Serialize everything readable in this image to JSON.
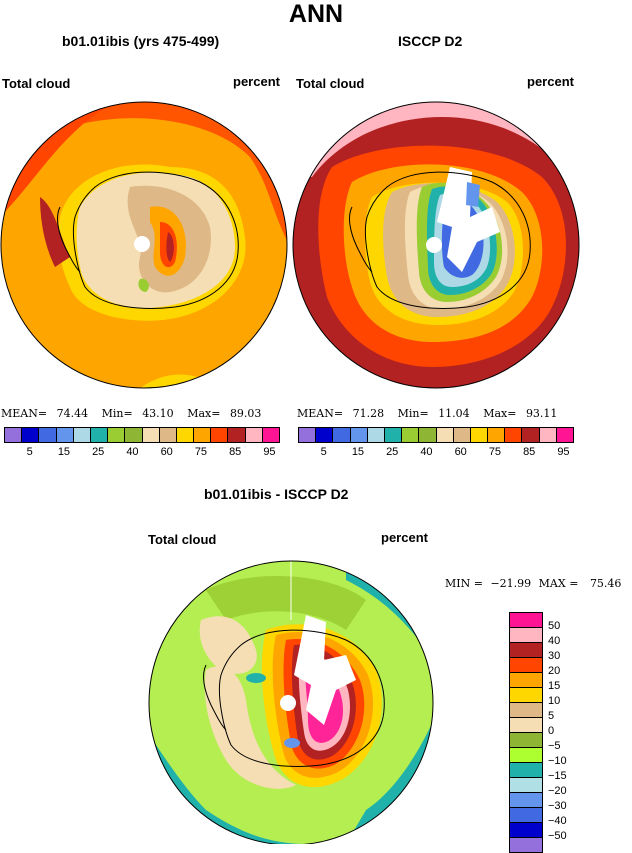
{
  "title": "ANN",
  "panels": {
    "model": {
      "title": "b01.01ibis (yrs 475-499)",
      "left": "Total cloud",
      "right": "percent"
    },
    "obs": {
      "title": "ISCCP D2",
      "left": "Total cloud",
      "right": "percent"
    },
    "diff": {
      "title": "b01.01ibis - ISCCP D2",
      "left": "Total cloud",
      "right": "percent"
    }
  },
  "stats": {
    "model": {
      "mean_label": "MEAN=",
      "mean": "74.44",
      "min_label": "Min=",
      "min": "43.10",
      "max_label": "Max=",
      "max": "89.03"
    },
    "obs": {
      "mean_label": "MEAN=",
      "mean": "71.28",
      "min_label": "Min=",
      "min": "11.04",
      "max_label": "Max=",
      "max": "93.11"
    },
    "diff": {
      "min_label": "MIN =",
      "min": "−21.99",
      "max_label": "MAX =",
      "max": "75.46"
    }
  },
  "colorbar_top": {
    "colors": [
      "#9370db",
      "#0000cd",
      "#4169e1",
      "#6495ed",
      "#add8e6",
      "#20b2aa",
      "#9acd32",
      "#8fb535",
      "#f5deb3",
      "#deb887",
      "#ffd700",
      "#ffa500",
      "#ff4500",
      "#b22222",
      "#ffb6c1",
      "#ff1493"
    ],
    "ticks": [
      "5",
      "15",
      "25",
      "40",
      "60",
      "75",
      "85",
      "95"
    ]
  },
  "colorbar_diff": {
    "colors": [
      "#ff1493",
      "#ffb6c1",
      "#b22222",
      "#ff4500",
      "#ffa500",
      "#ffd700",
      "#deb887",
      "#f5deb3",
      "#8fb535",
      "#adff2f",
      "#20b2aa",
      "#b0e0e6",
      "#6495ed",
      "#4169e1",
      "#0000cd",
      "#9370db"
    ],
    "labels": [
      "50",
      "40",
      "30",
      "20",
      "15",
      "10",
      "5",
      "0",
      "−5",
      "−10",
      "−15",
      "−20",
      "−30",
      "−40",
      "−50"
    ]
  }
}
